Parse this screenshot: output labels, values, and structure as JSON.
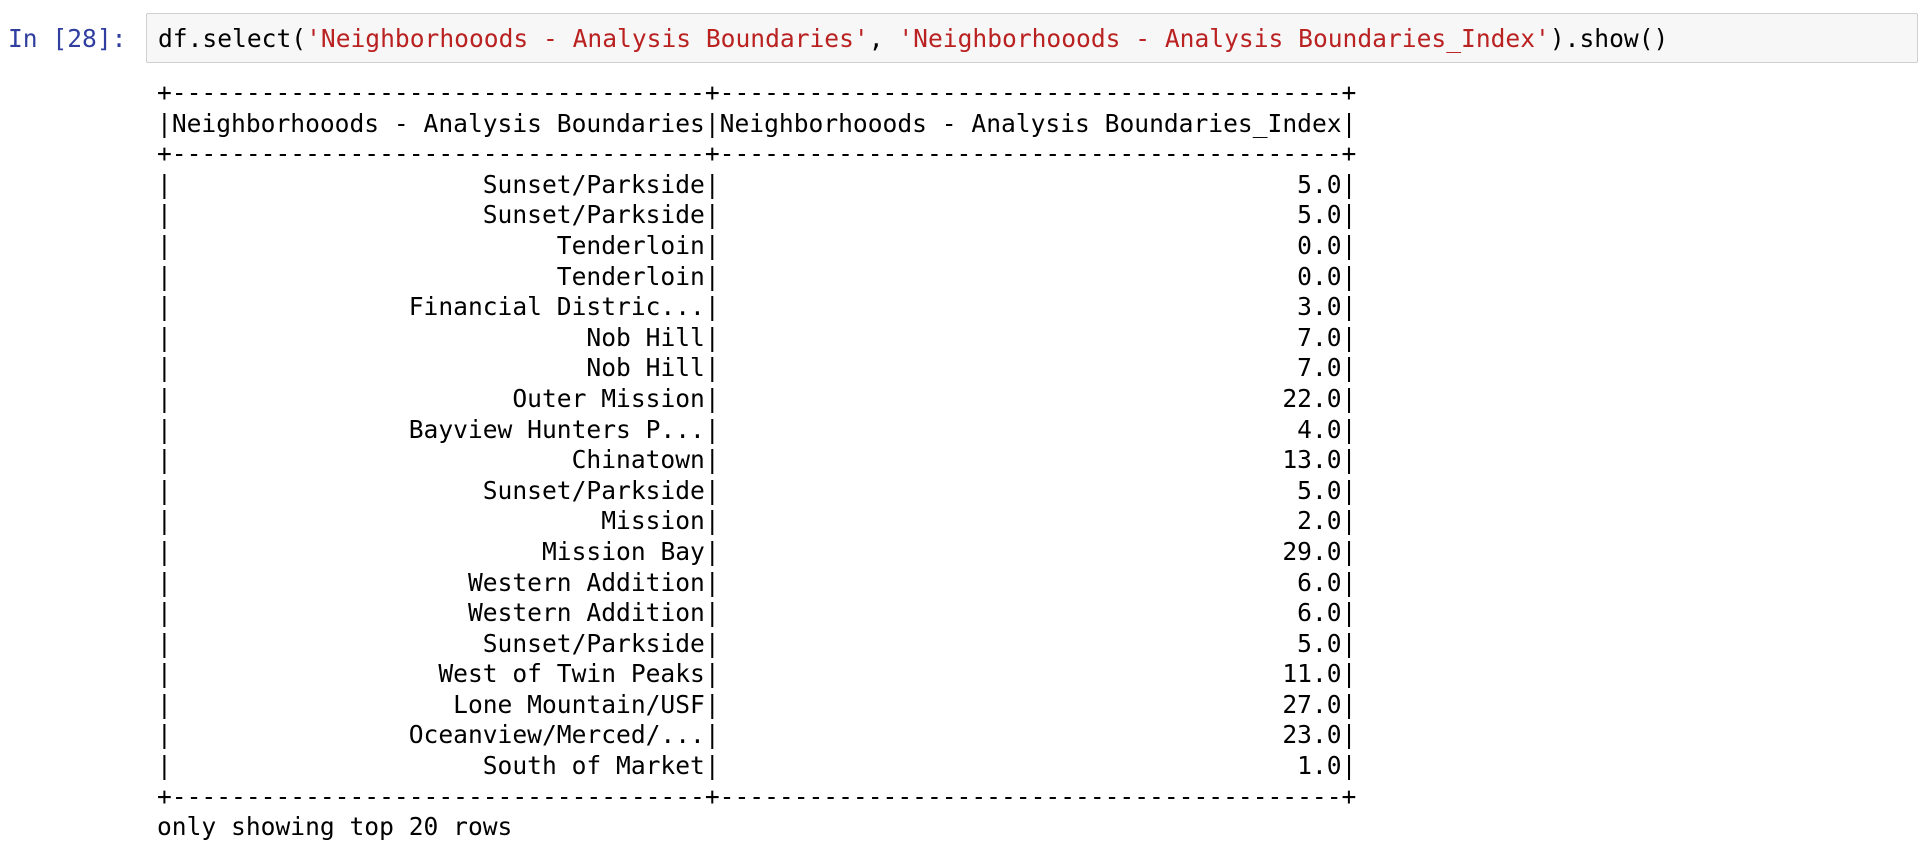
{
  "cell": {
    "prompt": "In [28]:",
    "code_prefix": "df.select(",
    "code_arg1": "'Neighborhooods - Analysis Boundaries'",
    "code_sep": ", ",
    "code_arg2": "'Neighborhooods - Analysis Boundaries_Index'",
    "code_suffix": ").show()"
  },
  "output": {
    "columns": [
      "Neighborhooods - Analysis Boundaries",
      "Neighborhooods - Analysis Boundaries_Index"
    ],
    "rows": [
      [
        "Sunset/Parkside",
        "5.0"
      ],
      [
        "Sunset/Parkside",
        "5.0"
      ],
      [
        "Tenderloin",
        "0.0"
      ],
      [
        "Tenderloin",
        "0.0"
      ],
      [
        "Financial Distric...",
        "3.0"
      ],
      [
        "Nob Hill",
        "7.0"
      ],
      [
        "Nob Hill",
        "7.0"
      ],
      [
        "Outer Mission",
        "22.0"
      ],
      [
        "Bayview Hunters P...",
        "4.0"
      ],
      [
        "Chinatown",
        "13.0"
      ],
      [
        "Sunset/Parkside",
        "5.0"
      ],
      [
        "Mission",
        "2.0"
      ],
      [
        "Mission Bay",
        "29.0"
      ],
      [
        "Western Addition",
        "6.0"
      ],
      [
        "Western Addition",
        "6.0"
      ],
      [
        "Sunset/Parkside",
        "5.0"
      ],
      [
        "West of Twin Peaks",
        "11.0"
      ],
      [
        "Lone Mountain/USF",
        "27.0"
      ],
      [
        "Oceanview/Merced/...",
        "23.0"
      ],
      [
        "South of Market",
        "1.0"
      ]
    ],
    "footer": "only showing top 20 rows"
  }
}
